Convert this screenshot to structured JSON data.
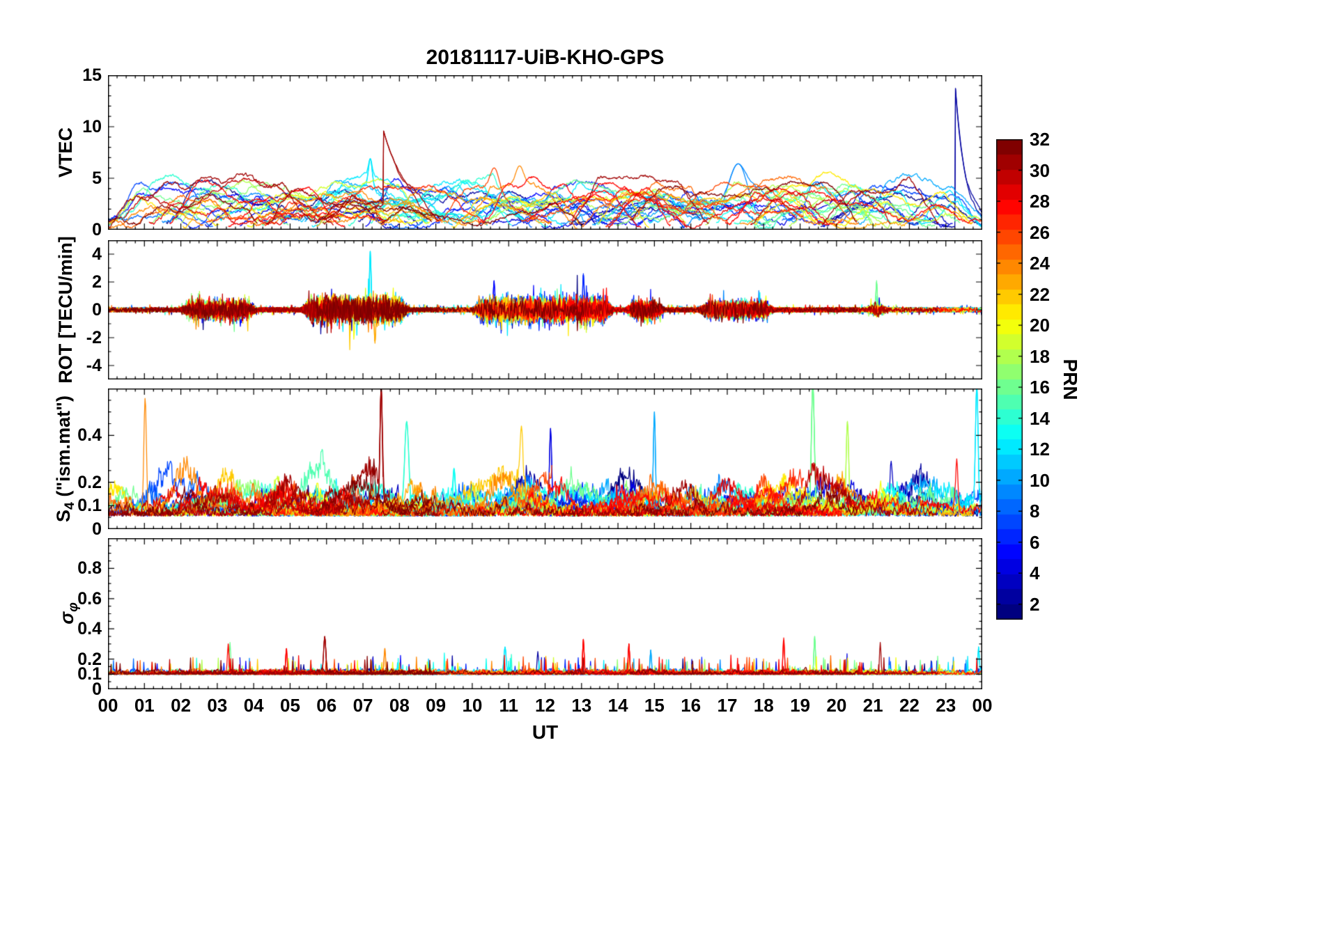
{
  "title": "20181117-UiB-KHO-GPS",
  "chart_data": {
    "type": "line",
    "title": "20181117-UiB-KHO-GPS",
    "xlabel": "UT",
    "x_range_hours": [
      0,
      24
    ],
    "x_tick_labels": [
      "00",
      "01",
      "02",
      "03",
      "04",
      "05",
      "06",
      "07",
      "08",
      "09",
      "10",
      "11",
      "12",
      "13",
      "14",
      "15",
      "16",
      "17",
      "18",
      "19",
      "20",
      "21",
      "22",
      "23",
      "00"
    ],
    "x_minor_tick_hours": 0.25,
    "series": "32 GPS satellite arcs (PRN 1-32), line color mapped to PRN via jet colormap",
    "colorbar": {
      "label": "PRN",
      "min": 1,
      "max": 32,
      "tick_labels": [
        "2",
        "4",
        "6",
        "8",
        "10",
        "12",
        "14",
        "16",
        "18",
        "20",
        "22",
        "24",
        "26",
        "28",
        "30",
        "32"
      ],
      "colormap": "jet"
    },
    "panels": [
      {
        "id": "vtec",
        "ylabel_pre": "VTEC",
        "ylabel_sub": "",
        "ylabel_post": "",
        "ylim": [
          0,
          15
        ],
        "yticks": [
          {
            "v": 0,
            "label": "0"
          },
          {
            "v": 5,
            "label": "5"
          },
          {
            "v": 10,
            "label": "10"
          },
          {
            "v": 15,
            "label": "15"
          }
        ],
        "y_minor_step": 1,
        "kind": "vtec",
        "baseline": {
          "min": 1.2,
          "max": 4.8,
          "typical": "most arcs wander between ~1 and 5 TECU"
        },
        "events": [
          {
            "prn": 31,
            "t": 7.55,
            "shape": "decay",
            "peak": 9.8,
            "tau": 0.55,
            "note": "dark red arc peaks ~9.8 near 07:30 then decays"
          },
          {
            "prn": 2,
            "t": 23.25,
            "shape": "decay",
            "peak": 14.5,
            "tau": 0.25,
            "note": "dark blue spike to ~14.5 near 23:15"
          },
          {
            "prn": 12,
            "t": 7.2,
            "shape": "spike",
            "peak": 6.9,
            "width": 0.05,
            "note": "narrow cyan spike ~7 at 07:12"
          },
          {
            "prn": 9,
            "t": 17.3,
            "shape": "spike",
            "peak": 6.4,
            "width": 0.25,
            "note": "light blue bump ~6.5 at 17:18"
          },
          {
            "prn": 26,
            "t": 10.6,
            "shape": "spike",
            "peak": 6.0,
            "width": 0.12
          },
          {
            "prn": 24,
            "t": 11.3,
            "shape": "spike",
            "peak": 6.2,
            "width": 0.1
          }
        ]
      },
      {
        "id": "rot",
        "ylabel_pre": "ROT [TECU/min]",
        "ylabel_sub": "",
        "ylabel_post": "",
        "ylim": [
          -5,
          5
        ],
        "yticks": [
          {
            "v": -4,
            "label": "-4"
          },
          {
            "v": -2,
            "label": "-2"
          },
          {
            "v": 0,
            "label": "0"
          },
          {
            "v": 2,
            "label": "2"
          },
          {
            "v": 4,
            "label": "4"
          }
        ],
        "y_minor_step": 1,
        "kind": "rot",
        "baseline": {
          "amp": 0.18,
          "typical": "noise band around 0, mostly within ±1"
        },
        "burst_windows": [
          {
            "start": 2.0,
            "end": 4.1,
            "amp": 0.75
          },
          {
            "start": 5.3,
            "end": 8.3,
            "amp": 1.0
          },
          {
            "start": 10.0,
            "end": 13.9,
            "amp": 1.05
          },
          {
            "start": 14.2,
            "end": 15.3,
            "amp": 0.8
          },
          {
            "start": 16.2,
            "end": 18.3,
            "amp": 0.7
          },
          {
            "start": 20.8,
            "end": 21.4,
            "amp": 0.55
          }
        ],
        "events": [
          {
            "prn": 12,
            "t": 7.2,
            "shape": "spike",
            "peak": 4.2,
            "width": 0.02,
            "note": "cyan spike to ~4.2 at 07:12"
          },
          {
            "prn": 23,
            "t": 7.33,
            "shape": "spike",
            "peak": -2.4,
            "width": 0.02,
            "note": "orange negative spike ~-2.4"
          },
          {
            "prn": 6,
            "t": 13.05,
            "shape": "spike",
            "peak": 2.6,
            "width": 0.02,
            "note": "blue spike ~2.6 at 13:03"
          },
          {
            "prn": 5,
            "t": 10.6,
            "shape": "spike",
            "peak": 2.1,
            "width": 0.02
          },
          {
            "prn": 16,
            "t": 21.1,
            "shape": "spike",
            "peak": 2.1,
            "width": 0.02
          }
        ]
      },
      {
        "id": "s4",
        "ylabel_pre": "S",
        "ylabel_sub": "4",
        "ylabel_post": " (\"ism.mat\")",
        "ylim": [
          0,
          0.6
        ],
        "yticks": [
          {
            "v": 0,
            "label": "0"
          },
          {
            "v": 0.1,
            "label": "0.1"
          },
          {
            "v": 0.2,
            "label": "0.2"
          },
          {
            "v": 0.4,
            "label": "0.4"
          }
        ],
        "y_minor_step": 0.05,
        "kind": "s4",
        "baseline": {
          "base": 0.055,
          "noise": 0.035,
          "typical": "quiet band ~0.03-0.15"
        },
        "events": [
          {
            "prn": 24,
            "t": 1.02,
            "shape": "spike",
            "peak": 0.56,
            "width": 0.035,
            "note": "orange spike at ~01:00"
          },
          {
            "prn": 31,
            "t": 7.5,
            "shape": "spike",
            "peak": 0.62,
            "width": 0.03,
            "note": "dark red spike hitting panel top ~07:30"
          },
          {
            "prn": 32,
            "t": 7.3,
            "shape": "spike",
            "peak": 0.3,
            "width": 0.02
          },
          {
            "prn": 14,
            "t": 8.2,
            "shape": "spike",
            "peak": 0.46,
            "width": 0.055,
            "note": "aqua spike ~08:12"
          },
          {
            "prn": 13,
            "t": 9.5,
            "shape": "spike",
            "peak": 0.26,
            "width": 0.03
          },
          {
            "prn": 22,
            "t": 11.35,
            "shape": "spike",
            "peak": 0.44,
            "width": 0.04,
            "note": "yellow-orange spike ~11:20"
          },
          {
            "prn": 4,
            "t": 12.15,
            "shape": "spike",
            "peak": 0.43,
            "width": 0.03,
            "note": "blue spike ~12:09"
          },
          {
            "prn": 10,
            "t": 15.0,
            "shape": "spike",
            "peak": 0.5,
            "width": 0.028,
            "note": "sky-blue spike at 15:00"
          },
          {
            "prn": 16,
            "t": 19.35,
            "shape": "spike",
            "peak": 0.62,
            "width": 0.04,
            "note": "green spike hitting panel top ~19:20"
          },
          {
            "prn": 18,
            "t": 20.3,
            "shape": "spike",
            "peak": 0.46,
            "width": 0.035,
            "note": "yellow-green spike ~20:18"
          },
          {
            "prn": 3,
            "t": 21.5,
            "shape": "spike",
            "peak": 0.29,
            "width": 0.03
          },
          {
            "prn": 28,
            "t": 23.3,
            "shape": "spike",
            "peak": 0.3,
            "width": 0.03
          },
          {
            "prn": 12,
            "t": 23.85,
            "shape": "spike",
            "peak": 0.62,
            "width": 0.035,
            "note": "cyan spike at right edge"
          }
        ]
      },
      {
        "id": "sigma-phi",
        "ylabel_pre": "σ",
        "ylabel_sub": "φ",
        "ylabel_post": "",
        "ylim": [
          0,
          1
        ],
        "yticks": [
          {
            "v": 0,
            "label": "0"
          },
          {
            "v": 0.1,
            "label": "0.1"
          },
          {
            "v": 0.2,
            "label": "0.2"
          },
          {
            "v": 0.4,
            "label": "0.4"
          },
          {
            "v": 0.6,
            "label": "0.6"
          },
          {
            "v": 0.8,
            "label": "0.8"
          }
        ],
        "y_minor_step": 0.05,
        "kind": "sigma",
        "baseline": {
          "base": 0.105,
          "noise": 0.018,
          "typical": "flat band ~0.1 with spikes to 0.2-0.35"
        },
        "events": [
          {
            "prn": 28,
            "t": 3.3,
            "shape": "spike",
            "peak": 0.3,
            "width": 0.02
          },
          {
            "prn": 16,
            "t": 3.35,
            "shape": "spike",
            "peak": 0.31,
            "width": 0.014
          },
          {
            "prn": 28,
            "t": 4.9,
            "shape": "spike",
            "peak": 0.27,
            "width": 0.016
          },
          {
            "prn": 31,
            "t": 5.95,
            "shape": "spike",
            "peak": 0.35,
            "width": 0.03,
            "note": "dark red spike ~05:57"
          },
          {
            "prn": 24,
            "t": 7.6,
            "shape": "spike",
            "peak": 0.27,
            "width": 0.02
          },
          {
            "prn": 12,
            "t": 10.9,
            "shape": "spike",
            "peak": 0.28,
            "width": 0.03
          },
          {
            "prn": 2,
            "t": 11.8,
            "shape": "spike",
            "peak": 0.25,
            "width": 0.02
          },
          {
            "prn": 28,
            "t": 13.05,
            "shape": "spike",
            "peak": 0.33,
            "width": 0.015
          },
          {
            "prn": 28,
            "t": 14.3,
            "shape": "spike",
            "peak": 0.3,
            "width": 0.02
          },
          {
            "prn": 10,
            "t": 14.9,
            "shape": "spike",
            "peak": 0.26,
            "width": 0.02
          },
          {
            "prn": 28,
            "t": 18.55,
            "shape": "spike",
            "peak": 0.34,
            "width": 0.02
          },
          {
            "prn": 16,
            "t": 19.4,
            "shape": "spike",
            "peak": 0.35,
            "width": 0.015
          },
          {
            "prn": 31,
            "t": 21.2,
            "shape": "spike",
            "peak": 0.31,
            "width": 0.02
          },
          {
            "prn": 12,
            "t": 23.9,
            "shape": "spike",
            "peak": 0.28,
            "width": 0.02
          }
        ]
      }
    ]
  }
}
